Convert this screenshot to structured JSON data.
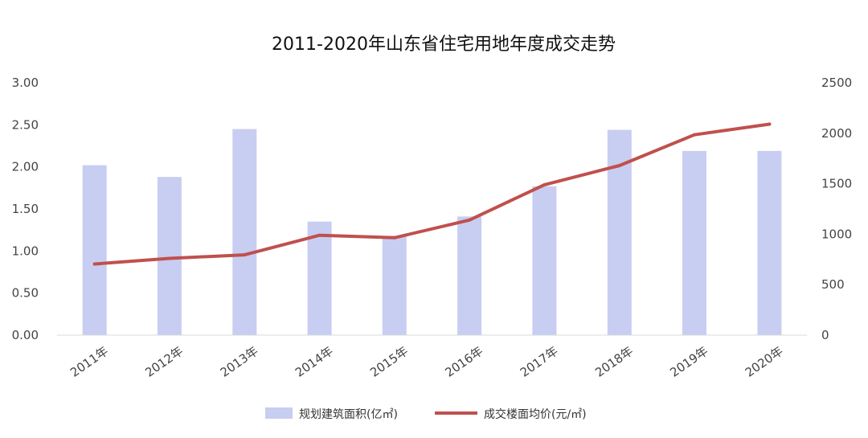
{
  "chart_data": {
    "type": "bar",
    "title": "2011-2020年山东省住宅用地年度成交走势",
    "categories": [
      "2011年",
      "2012年",
      "2013年",
      "2014年",
      "2015年",
      "2016年",
      "2017年",
      "2018年",
      "2019年",
      "2020年"
    ],
    "series": [
      {
        "name": "规划建筑面积(亿㎡)",
        "type": "bar",
        "axis": "left",
        "color": "#c8cdf2",
        "values": [
          2.02,
          1.88,
          2.45,
          1.35,
          1.18,
          1.41,
          1.77,
          2.44,
          2.19,
          2.19
        ]
      },
      {
        "name": "成交楼面均价(元/㎡)",
        "type": "line",
        "axis": "right",
        "color": "#c0504d",
        "values": [
          705,
          760,
          795,
          990,
          965,
          1140,
          1490,
          1680,
          1985,
          2090
        ]
      }
    ],
    "y_left": {
      "min": 0,
      "max": 3,
      "ticks": [
        "0.00",
        "0.50",
        "1.00",
        "1.50",
        "2.00",
        "2.50",
        "3.00"
      ],
      "tick_values": [
        0,
        0.5,
        1,
        1.5,
        2,
        2.5,
        3
      ]
    },
    "y_right": {
      "min": 0,
      "max": 2500,
      "ticks": [
        "0",
        "500",
        "1000",
        "1500",
        "2000",
        "2500"
      ],
      "tick_values": [
        0,
        500,
        1000,
        1500,
        2000,
        2500
      ]
    },
    "grid": false,
    "legend_position": "bottom"
  }
}
